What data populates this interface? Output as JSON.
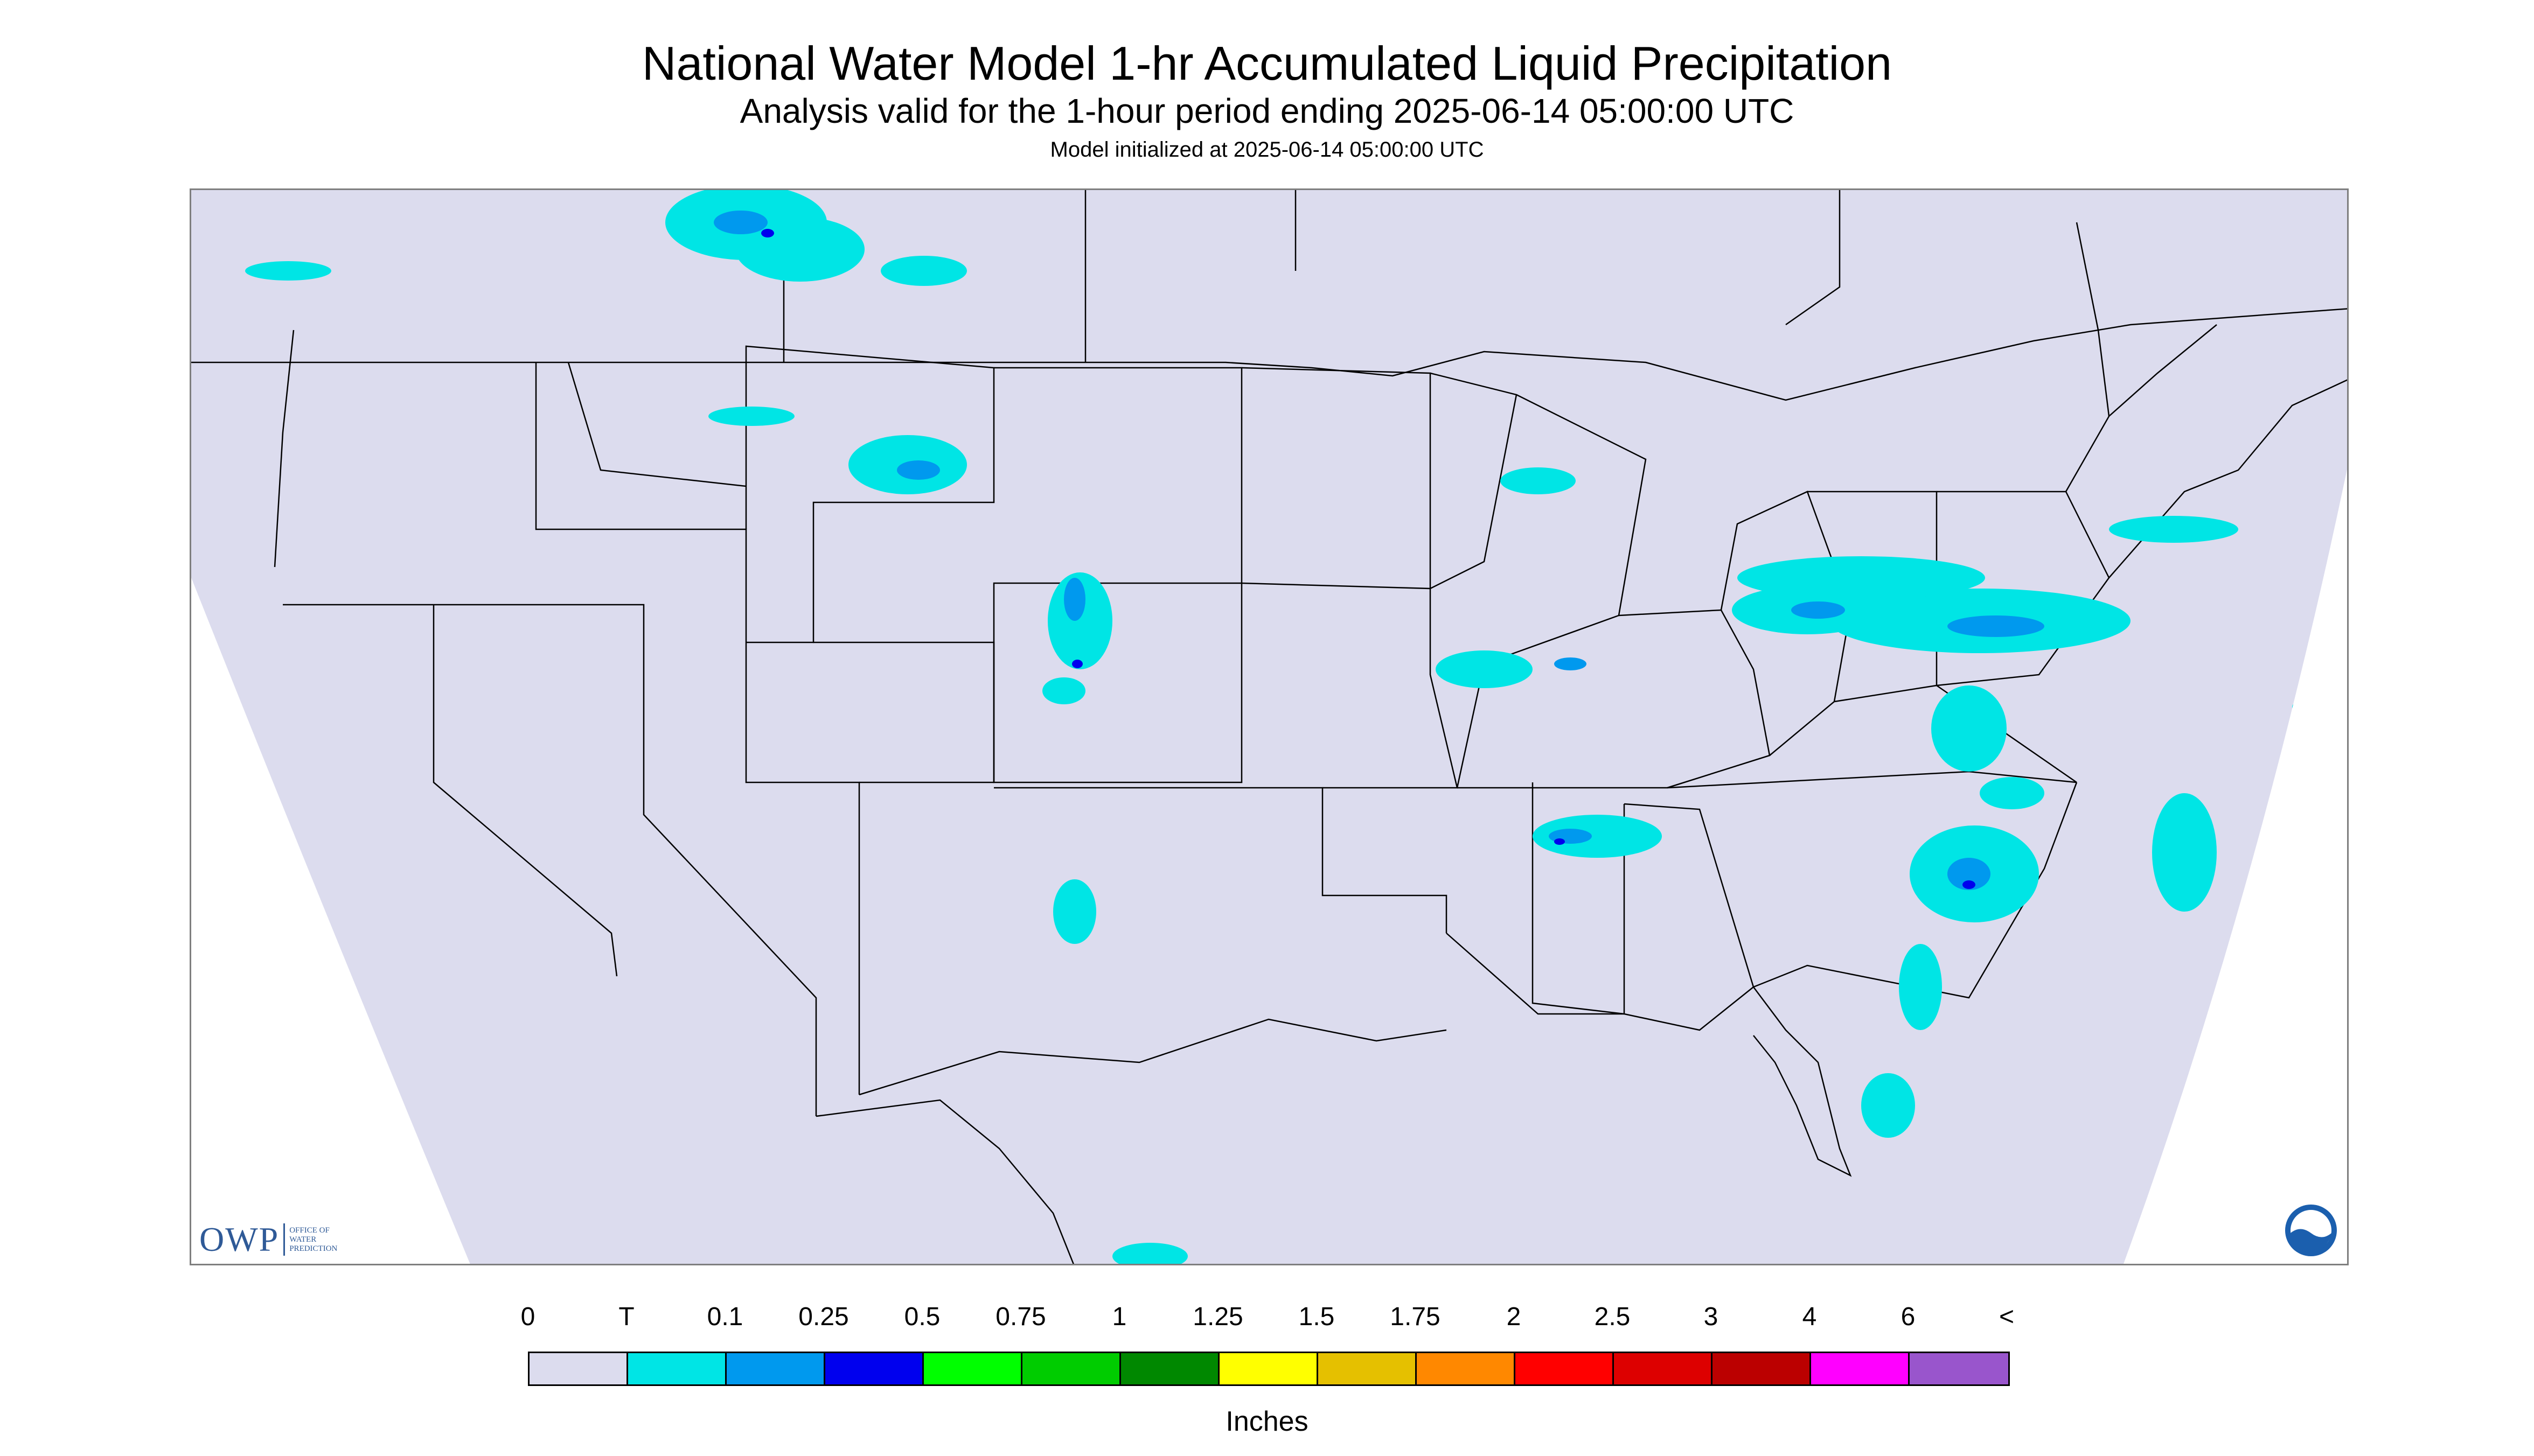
{
  "header": {
    "title": "National Water Model 1-hr Accumulated Liquid Precipitation",
    "subtitle": "Analysis valid for the 1-hour period ending 2025-06-14 05:00:00 UTC",
    "initialized": "Model initialized at 2025-06-14 05:00:00 UTC"
  },
  "map": {
    "region": "Continental United States",
    "background_color": "#dcdcee",
    "boundary_color": "#000000"
  },
  "logos": {
    "owp_mark": "OWP",
    "owp_text": [
      "OFFICE OF",
      "WATER",
      "PREDICTION"
    ],
    "noaa_icon": "noaa-logo-icon"
  },
  "legend": {
    "labels": [
      "0",
      "T",
      "0.1",
      "0.25",
      "0.5",
      "0.75",
      "1",
      "1.25",
      "1.5",
      "1.75",
      "2",
      "2.5",
      "3",
      "4",
      "6",
      "<"
    ],
    "colors": [
      "#dcdcee",
      "#00e5e5",
      "#0099ee",
      "#0000ee",
      "#00ff00",
      "#00cc00",
      "#008800",
      "#ffff00",
      "#e5c000",
      "#ff8800",
      "#ff0000",
      "#dd0000",
      "#bb0000",
      "#ff00ff",
      "#9955cc"
    ],
    "units": "Inches"
  }
}
